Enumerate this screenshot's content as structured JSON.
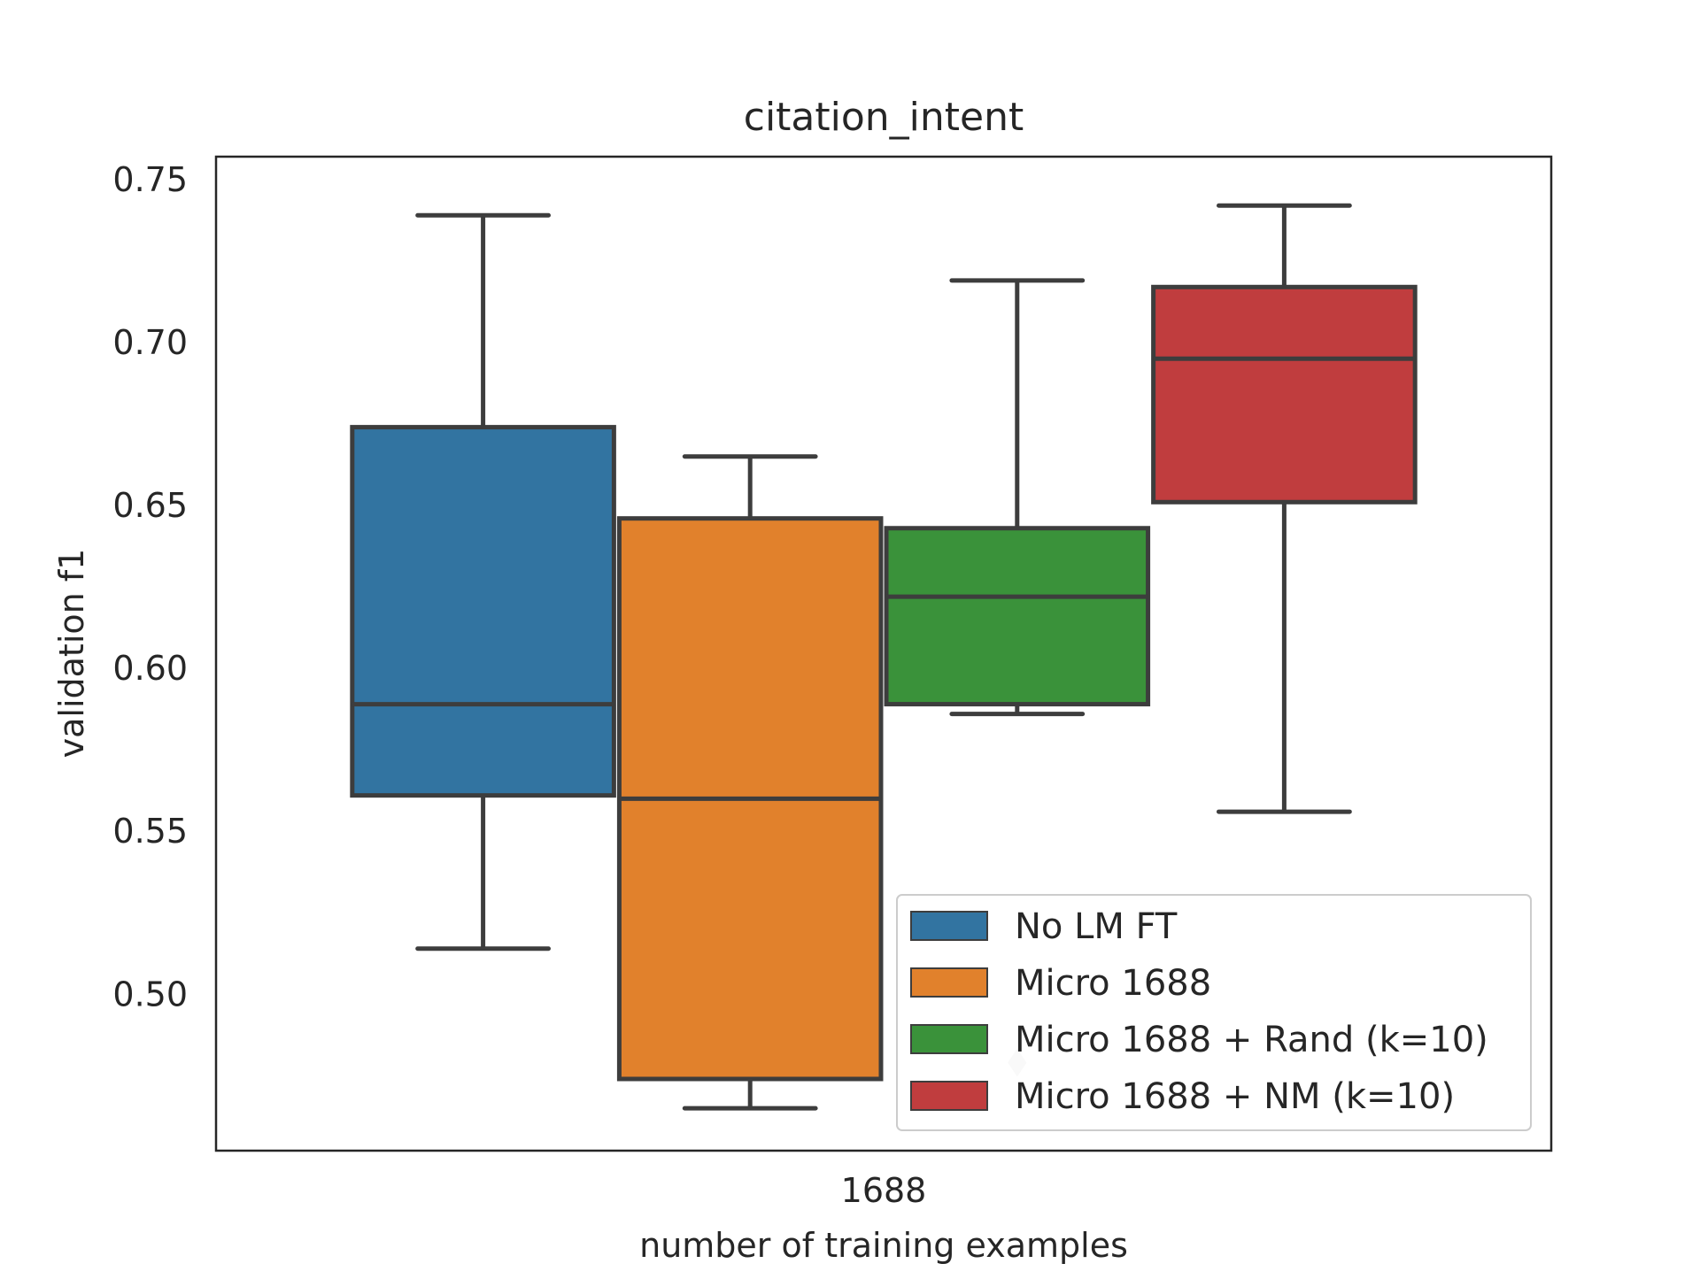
{
  "chart_data": {
    "type": "box",
    "title": "citation_intent",
    "xlabel": "number of training examples",
    "ylabel": "validation f1",
    "categories": [
      "1688"
    ],
    "ylim": [
      0.452,
      0.757
    ],
    "yticks": [
      "0.50",
      "0.55",
      "0.60",
      "0.65",
      "0.70",
      "0.75"
    ],
    "grid": false,
    "legend_position": "lower-right",
    "series": [
      {
        "name": "No LM FT",
        "color": "#3274a1",
        "whisker_low": 0.514,
        "q1": 0.561,
        "median": 0.589,
        "q3": 0.674,
        "whisker_high": 0.739,
        "outliers": []
      },
      {
        "name": "Micro 1688",
        "color": "#e1812c",
        "whisker_low": 0.465,
        "q1": 0.474,
        "median": 0.56,
        "q3": 0.646,
        "whisker_high": 0.665,
        "outliers": []
      },
      {
        "name": "Micro 1688 + Rand (k=10)",
        "color": "#3a923a",
        "whisker_low": 0.586,
        "q1": 0.589,
        "median": 0.622,
        "q3": 0.643,
        "whisker_high": 0.719,
        "outliers": [
          0.479
        ]
      },
      {
        "name": "Micro 1688 + NM (k=10)",
        "color": "#c03d3e",
        "whisker_low": 0.556,
        "q1": 0.651,
        "median": 0.695,
        "q3": 0.717,
        "whisker_high": 0.742,
        "outliers": []
      }
    ]
  }
}
